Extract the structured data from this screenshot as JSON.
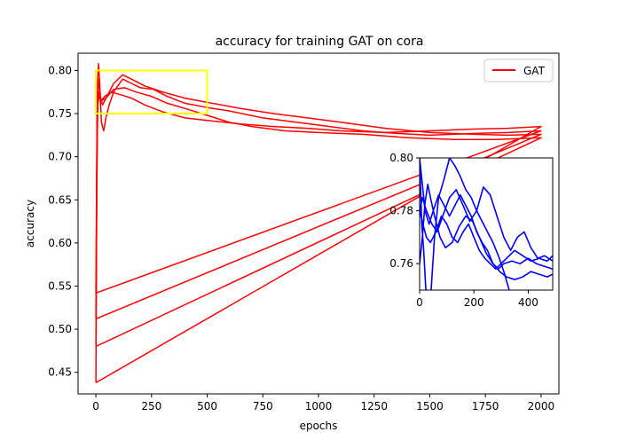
{
  "chart_data": {
    "type": "line",
    "title": "accuracy for training GAT on cora",
    "xlabel": "epochs",
    "ylabel": "accuracy",
    "xlim": [
      -80,
      2080
    ],
    "ylim": [
      0.425,
      0.82
    ],
    "xticks": [
      0,
      250,
      500,
      750,
      1000,
      1250,
      1500,
      1750,
      2000
    ],
    "xtick_labels": [
      "0",
      "250",
      "500",
      "750",
      "1000",
      "1250",
      "1500",
      "1750",
      "2000"
    ],
    "yticks": [
      0.45,
      0.5,
      0.55,
      0.6,
      0.65,
      0.7,
      0.75,
      0.8
    ],
    "ytick_labels": [
      "0.45",
      "0.50",
      "0.55",
      "0.60",
      "0.65",
      "0.70",
      "0.75",
      "0.80"
    ],
    "legend": {
      "position": "top-right",
      "entries": [
        {
          "label": "GAT",
          "color": "#ff0000"
        }
      ]
    },
    "series": [
      {
        "name": "GAT",
        "color": "#ff0000",
        "points": [
          [
            0,
            0.438
          ],
          [
            3,
            0.6
          ],
          [
            5,
            0.75
          ],
          [
            8,
            0.79
          ],
          [
            12,
            0.808
          ],
          [
            18,
            0.78
          ],
          [
            25,
            0.74
          ],
          [
            35,
            0.73
          ],
          [
            45,
            0.745
          ],
          [
            60,
            0.76
          ],
          [
            80,
            0.775
          ],
          [
            120,
            0.79
          ],
          [
            160,
            0.785
          ],
          [
            200,
            0.78
          ],
          [
            260,
            0.778
          ],
          [
            320,
            0.77
          ],
          [
            400,
            0.762
          ],
          [
            500,
            0.757
          ],
          [
            600,
            0.753
          ],
          [
            750,
            0.745
          ],
          [
            900,
            0.74
          ],
          [
            1050,
            0.735
          ],
          [
            1200,
            0.73
          ],
          [
            1350,
            0.727
          ],
          [
            1500,
            0.725
          ],
          [
            1700,
            0.727
          ],
          [
            1850,
            0.728
          ],
          [
            2000,
            0.73
          ],
          [
            0,
            0.542
          ]
        ]
      },
      {
        "name": "GAT",
        "color": "#ff0000",
        "points": [
          [
            0,
            0.542
          ],
          [
            4,
            0.7
          ],
          [
            8,
            0.77
          ],
          [
            14,
            0.79
          ],
          [
            20,
            0.77
          ],
          [
            30,
            0.76
          ],
          [
            50,
            0.77
          ],
          [
            80,
            0.785
          ],
          [
            120,
            0.795
          ],
          [
            160,
            0.79
          ],
          [
            220,
            0.782
          ],
          [
            300,
            0.775
          ],
          [
            400,
            0.768
          ],
          [
            500,
            0.763
          ],
          [
            650,
            0.756
          ],
          [
            800,
            0.75
          ],
          [
            950,
            0.745
          ],
          [
            1100,
            0.74
          ],
          [
            1300,
            0.733
          ],
          [
            1500,
            0.728
          ],
          [
            1700,
            0.726
          ],
          [
            1850,
            0.725
          ],
          [
            2000,
            0.726
          ],
          [
            0,
            0.512
          ]
        ]
      },
      {
        "name": "GAT",
        "color": "#ff0000",
        "points": [
          [
            0,
            0.512
          ],
          [
            4,
            0.68
          ],
          [
            8,
            0.76
          ],
          [
            14,
            0.775
          ],
          [
            25,
            0.765
          ],
          [
            45,
            0.768
          ],
          [
            80,
            0.778
          ],
          [
            130,
            0.78
          ],
          [
            180,
            0.775
          ],
          [
            250,
            0.77
          ],
          [
            320,
            0.762
          ],
          [
            400,
            0.756
          ],
          [
            500,
            0.748
          ],
          [
            600,
            0.74
          ],
          [
            700,
            0.735
          ],
          [
            850,
            0.73
          ],
          [
            1000,
            0.728
          ],
          [
            1200,
            0.726
          ],
          [
            1400,
            0.722
          ],
          [
            1600,
            0.72
          ],
          [
            1800,
            0.72
          ],
          [
            2000,
            0.722
          ],
          [
            0,
            0.48
          ]
        ]
      },
      {
        "name": "GAT",
        "color": "#ff0000",
        "points": [
          [
            0,
            0.48
          ],
          [
            4,
            0.66
          ],
          [
            8,
            0.76
          ],
          [
            14,
            0.77
          ],
          [
            25,
            0.765
          ],
          [
            40,
            0.77
          ],
          [
            70,
            0.775
          ],
          [
            110,
            0.772
          ],
          [
            160,
            0.768
          ],
          [
            220,
            0.76
          ],
          [
            300,
            0.752
          ],
          [
            400,
            0.745
          ],
          [
            500,
            0.742
          ],
          [
            650,
            0.738
          ],
          [
            800,
            0.735
          ],
          [
            950,
            0.733
          ],
          [
            1100,
            0.73
          ],
          [
            1300,
            0.728
          ],
          [
            1500,
            0.73
          ],
          [
            1700,
            0.732
          ],
          [
            1850,
            0.733
          ],
          [
            2000,
            0.735
          ],
          [
            0,
            0.438
          ]
        ]
      }
    ],
    "zoom_box": {
      "x": [
        0,
        500
      ],
      "y": [
        0.75,
        0.8
      ],
      "color": "#ffff00"
    },
    "inset": {
      "type": "line",
      "xlim": [
        0,
        490
      ],
      "ylim": [
        0.75,
        0.8
      ],
      "xticks": [
        0,
        200,
        400
      ],
      "xtick_labels": [
        "0",
        "200",
        "400"
      ],
      "yticks": [
        0.76,
        0.78,
        0.8
      ],
      "ytick_labels": [
        "0.76",
        "0.78",
        "0.80"
      ],
      "color": "#0000ff",
      "series": [
        {
          "points": [
            [
              0,
              0.8
            ],
            [
              8,
              0.775
            ],
            [
              15,
              0.765
            ],
            [
              22,
              0.752
            ],
            [
              30,
              0.74
            ],
            [
              40,
              0.746
            ],
            [
              55,
              0.77
            ],
            [
              70,
              0.785
            ],
            [
              90,
              0.792
            ],
            [
              110,
              0.8
            ],
            [
              130,
              0.797
            ],
            [
              150,
              0.793
            ],
            [
              170,
              0.788
            ],
            [
              190,
              0.785
            ],
            [
              210,
              0.78
            ],
            [
              230,
              0.776
            ],
            [
              250,
              0.772
            ],
            [
              270,
              0.768
            ],
            [
              290,
              0.763
            ],
            [
              310,
              0.757
            ],
            [
              330,
              0.75
            ]
          ]
        },
        {
          "points": [
            [
              0,
              0.8
            ],
            [
              10,
              0.79
            ],
            [
              20,
              0.78
            ],
            [
              35,
              0.775
            ],
            [
              50,
              0.78
            ],
            [
              70,
              0.786
            ],
            [
              90,
              0.782
            ],
            [
              110,
              0.778
            ],
            [
              130,
              0.782
            ],
            [
              150,
              0.786
            ],
            [
              170,
              0.782
            ],
            [
              190,
              0.778
            ],
            [
              210,
              0.772
            ],
            [
              230,
              0.768
            ],
            [
              250,
              0.765
            ],
            [
              270,
              0.76
            ],
            [
              290,
              0.758
            ],
            [
              310,
              0.76
            ],
            [
              340,
              0.761
            ],
            [
              370,
              0.76
            ],
            [
              400,
              0.762
            ],
            [
              430,
              0.76
            ],
            [
              460,
              0.759
            ],
            [
              490,
              0.758
            ]
          ]
        },
        {
          "points": [
            [
              0,
              0.78
            ],
            [
              10,
              0.785
            ],
            [
              25,
              0.78
            ],
            [
              45,
              0.775
            ],
            [
              65,
              0.772
            ],
            [
              85,
              0.778
            ],
            [
              110,
              0.785
            ],
            [
              135,
              0.788
            ],
            [
              160,
              0.782
            ],
            [
              185,
              0.776
            ],
            [
              210,
              0.78
            ],
            [
              235,
              0.789
            ],
            [
              260,
              0.786
            ],
            [
              285,
              0.778
            ],
            [
              310,
              0.77
            ],
            [
              335,
              0.765
            ],
            [
              360,
              0.77
            ],
            [
              385,
              0.772
            ],
            [
              410,
              0.766
            ],
            [
              435,
              0.762
            ],
            [
              460,
              0.763
            ],
            [
              490,
              0.761
            ]
          ]
        },
        {
          "points": [
            [
              0,
              0.78
            ],
            [
              12,
              0.775
            ],
            [
              25,
              0.77
            ],
            [
              40,
              0.768
            ],
            [
              60,
              0.772
            ],
            [
              80,
              0.778
            ],
            [
              100,
              0.775
            ],
            [
              120,
              0.77
            ],
            [
              140,
              0.768
            ],
            [
              160,
              0.772
            ],
            [
              180,
              0.775
            ],
            [
              200,
              0.77
            ],
            [
              220,
              0.765
            ],
            [
              240,
              0.762
            ],
            [
              260,
              0.76
            ],
            [
              280,
              0.758
            ],
            [
              300,
              0.76
            ],
            [
              320,
              0.762
            ],
            [
              350,
              0.765
            ],
            [
              380,
              0.763
            ],
            [
              410,
              0.761
            ],
            [
              440,
              0.762
            ],
            [
              470,
              0.761
            ],
            [
              490,
              0.763
            ]
          ]
        },
        {
          "points": [
            [
              0,
              0.76
            ],
            [
              10,
              0.77
            ],
            [
              20,
              0.783
            ],
            [
              30,
              0.79
            ],
            [
              40,
              0.785
            ],
            [
              55,
              0.778
            ],
            [
              75,
              0.77
            ],
            [
              95,
              0.766
            ],
            [
              120,
              0.768
            ],
            [
              145,
              0.774
            ],
            [
              170,
              0.778
            ],
            [
              195,
              0.776
            ],
            [
              220,
              0.77
            ],
            [
              245,
              0.764
            ],
            [
              270,
              0.76
            ],
            [
              295,
              0.757
            ],
            [
              320,
              0.755
            ],
            [
              350,
              0.754
            ],
            [
              380,
              0.755
            ],
            [
              410,
              0.757
            ],
            [
              440,
              0.756
            ],
            [
              470,
              0.755
            ],
            [
              490,
              0.756
            ]
          ]
        }
      ]
    }
  }
}
